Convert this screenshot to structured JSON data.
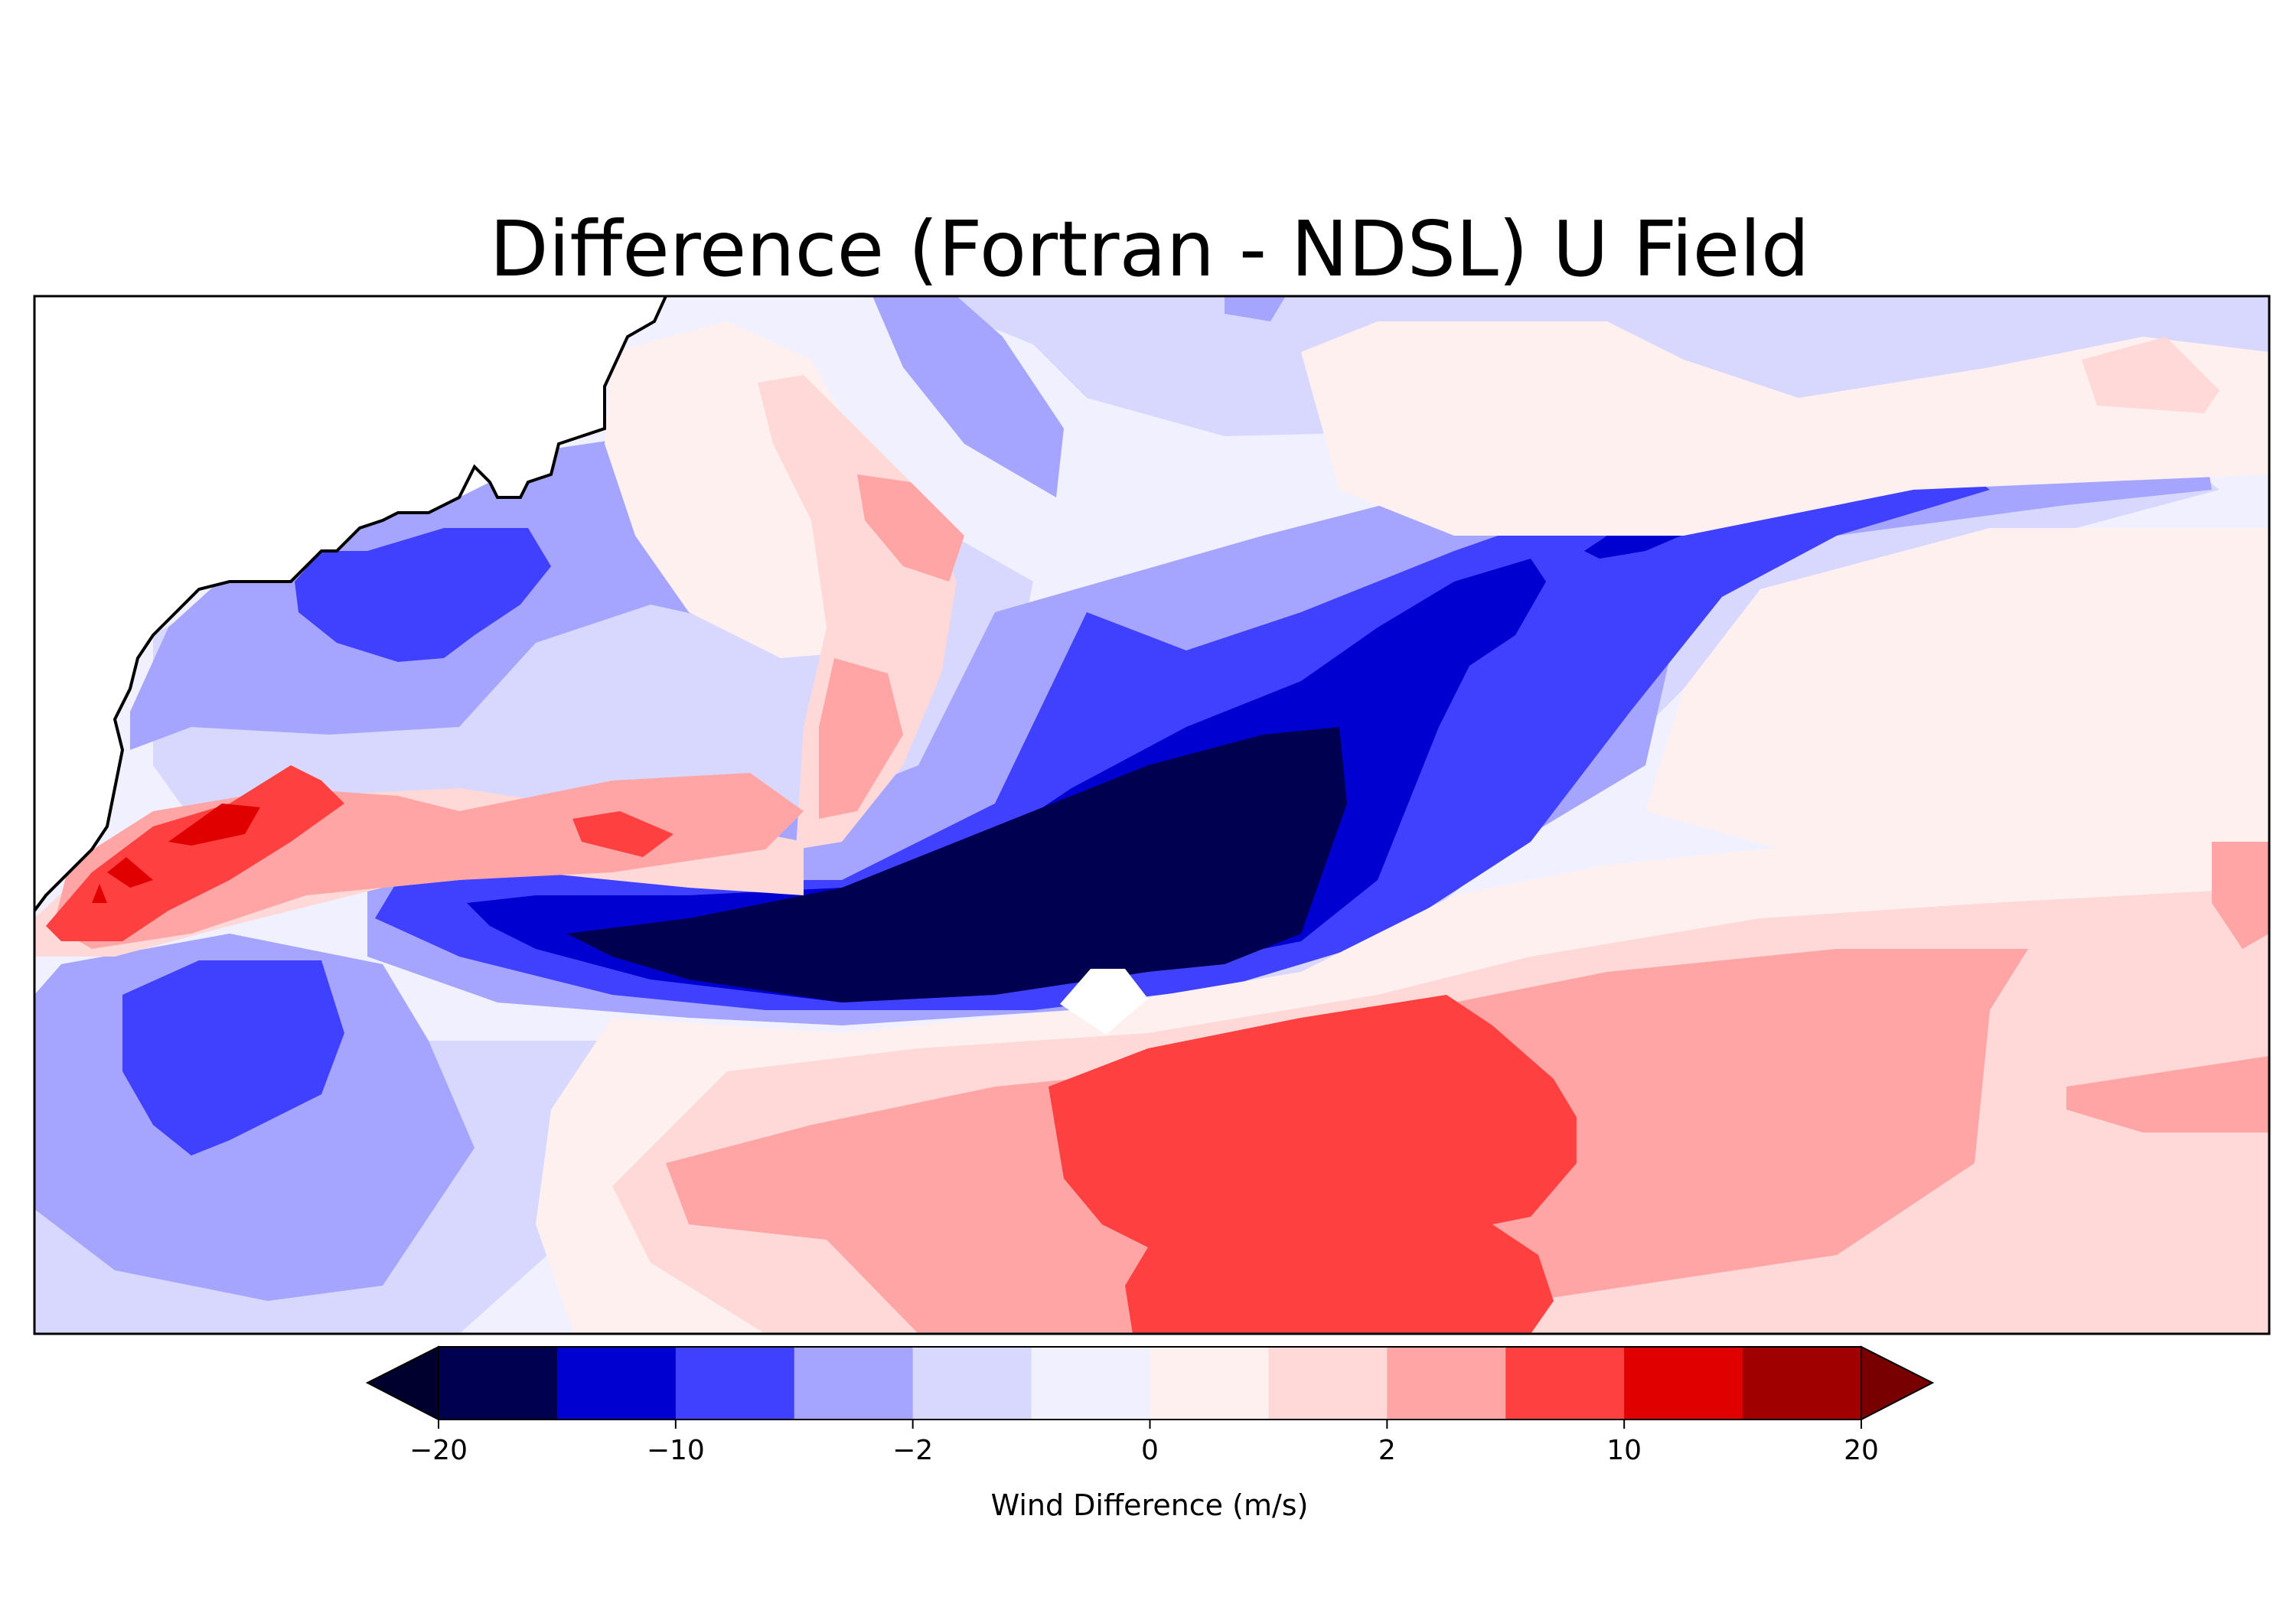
{
  "chart_data": {
    "type": "heatmap",
    "title": "Difference (Fortran - NDSL) U Field",
    "colorbar": {
      "label": "Wind Difference (m/s)",
      "extend": "both",
      "levels": [
        -20,
        -15,
        -10,
        -5,
        -2,
        -1,
        0,
        1,
        2,
        5,
        10,
        15,
        20
      ],
      "tick_values": [
        -20,
        -10,
        -2,
        0,
        2,
        10,
        20
      ],
      "tick_labels": [
        "−20",
        "−10",
        "−2",
        "0",
        "2",
        "10",
        "20"
      ],
      "colors": [
        "#000050",
        "#0000d0",
        "#4040ff",
        "#a5a5ff",
        "#d8d8ff",
        "#f0f0ff",
        "#fff0f0",
        "#ffd8d8",
        "#ffa5a5",
        "#ff4040",
        "#e00000",
        "#a00000"
      ],
      "under_color": "#00002e",
      "over_color": "#780000"
    },
    "field_summary": {
      "strong_negative_band": "elongated band from center-left toward upper-right, minimum below -15",
      "positive_region_south": "broad region of +5 to +10 in the south-center",
      "positive_patch_west": "patch up to +15 near the western coast",
      "missing_cell": "small white diamond at the southern edge of the negative band"
    },
    "map": {
      "coastline": true,
      "grid": false
    }
  }
}
